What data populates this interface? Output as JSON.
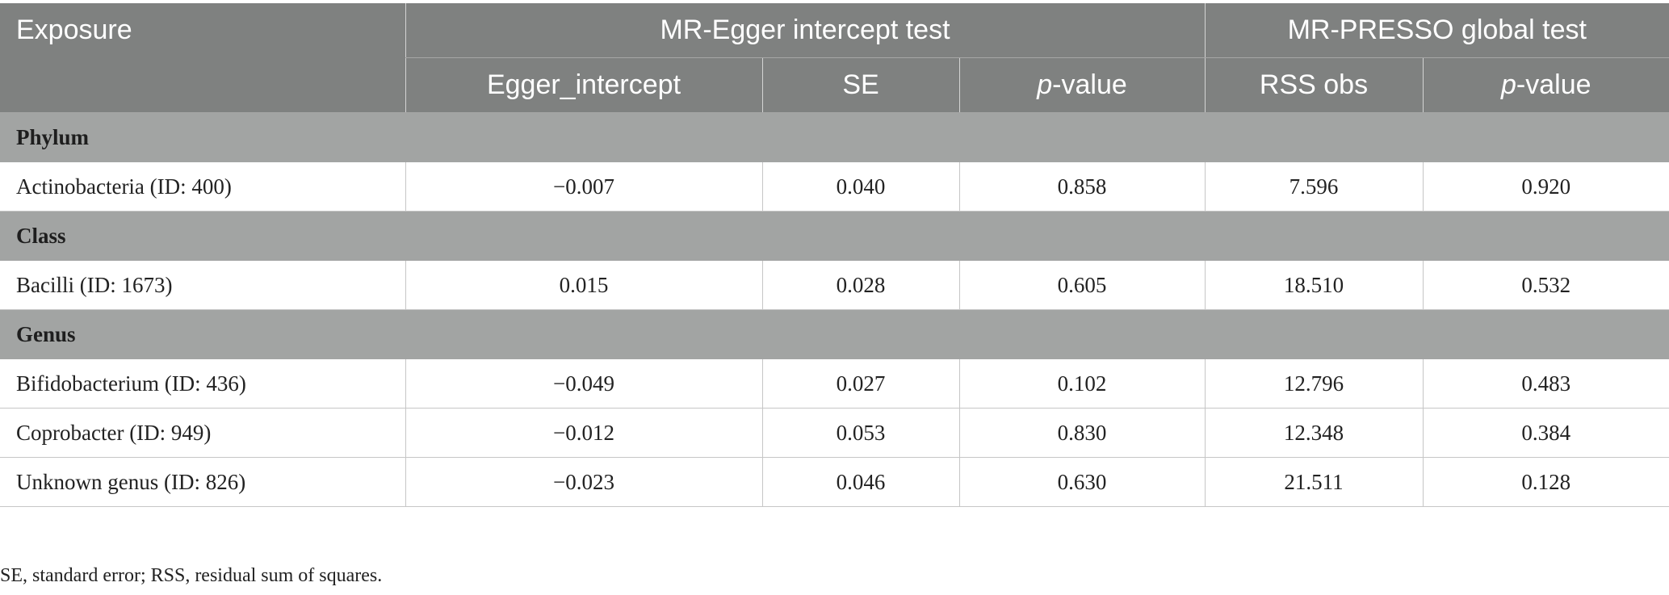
{
  "header": {
    "exposure": "Exposure",
    "group1": "MR-Egger intercept test",
    "group2": "MR-PRESSO global test",
    "sub": {
      "egger_intercept": "Egger_intercept",
      "se": "SE",
      "p_italic": "p",
      "p_suffix": "-value",
      "rss_obs": "RSS obs"
    }
  },
  "groups": [
    {
      "name": "Phylum",
      "rows": [
        {
          "exposure": "Actinobacteria (ID: 400)",
          "egger_intercept": "−0.007",
          "se": "0.040",
          "p_egger": "0.858",
          "rss_obs": "7.596",
          "p_presso": "0.920"
        }
      ]
    },
    {
      "name": "Class",
      "rows": [
        {
          "exposure": "Bacilli (ID: 1673)",
          "egger_intercept": "0.015",
          "se": "0.028",
          "p_egger": "0.605",
          "rss_obs": "18.510",
          "p_presso": "0.532"
        }
      ]
    },
    {
      "name": "Genus",
      "rows": [
        {
          "exposure": "Bifidobacterium (ID: 436)",
          "egger_intercept": "−0.049",
          "se": "0.027",
          "p_egger": "0.102",
          "rss_obs": "12.796",
          "p_presso": "0.483"
        },
        {
          "exposure": "Coprobacter (ID: 949)",
          "egger_intercept": "−0.012",
          "se": "0.053",
          "p_egger": "0.830",
          "rss_obs": "12.348",
          "p_presso": "0.384"
        },
        {
          "exposure": "Unknown genus (ID: 826)",
          "egger_intercept": "−0.023",
          "se": "0.046",
          "p_egger": "0.630",
          "rss_obs": "21.511",
          "p_presso": "0.128"
        }
      ]
    }
  ],
  "footnote": "SE, standard error; RSS, residual sum of squares.",
  "colors": {
    "header_bg": "#7f8180",
    "group_bg": "#a2a4a3",
    "row_bg": "#ffffff",
    "grid": "#c6c6c6"
  }
}
